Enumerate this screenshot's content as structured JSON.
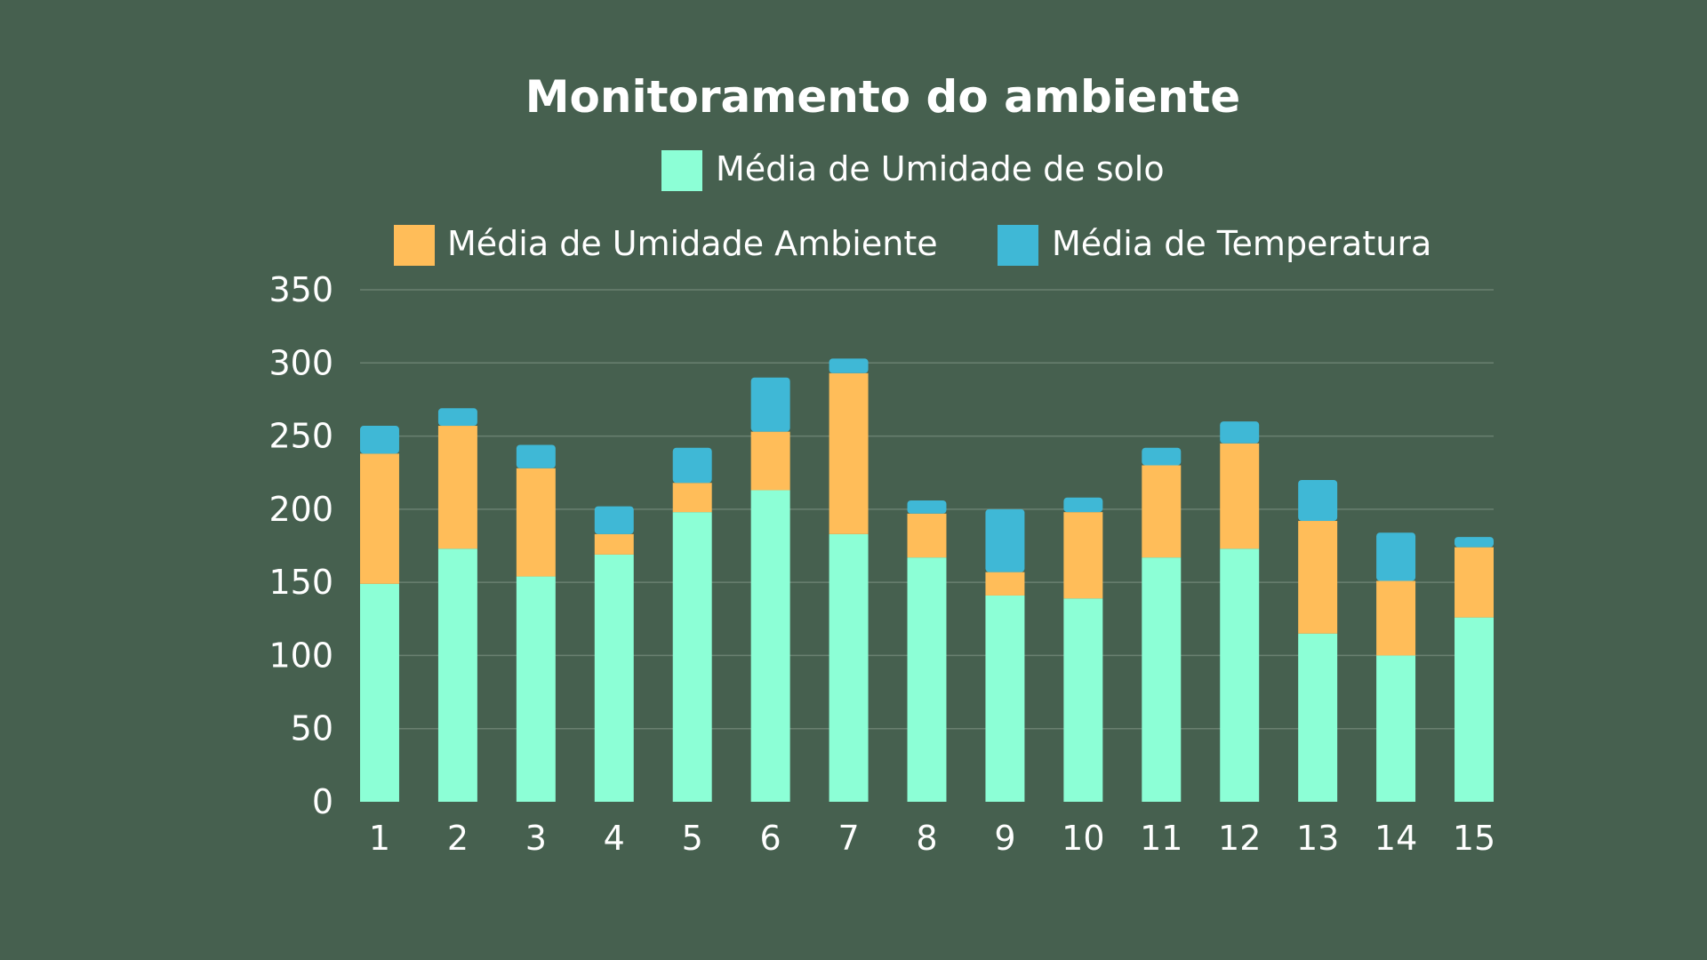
{
  "chart_data": {
    "type": "bar",
    "stacked": true,
    "title": "Monitoramento do ambiente",
    "xlabel": "",
    "ylabel": "",
    "categories": [
      "1",
      "2",
      "3",
      "4",
      "5",
      "6",
      "7",
      "8",
      "9",
      "10",
      "11",
      "12",
      "13",
      "14",
      "15"
    ],
    "series": [
      {
        "name": "Média de Umidade de solo",
        "color": "#8cffd6",
        "values": [
          149,
          173,
          154,
          169,
          198,
          213,
          183,
          167,
          141,
          139,
          167,
          173,
          115,
          100,
          126
        ]
      },
      {
        "name": "Média de Umidade Ambiente",
        "color": "#ffbd59",
        "values": [
          89,
          84,
          74,
          14,
          20,
          40,
          110,
          30,
          16,
          59,
          63,
          72,
          77,
          51,
          48
        ]
      },
      {
        "name": "Média de Temperatura",
        "color": "#3fb8d6",
        "values": [
          19,
          12,
          16,
          19,
          24,
          37,
          10,
          9,
          43,
          10,
          12,
          15,
          28,
          33,
          7
        ]
      }
    ],
    "ylim": [
      0,
      350
    ],
    "yticks": [
      0,
      50,
      100,
      150,
      200,
      250,
      300,
      350
    ],
    "grid": true,
    "legend_position": "top"
  }
}
